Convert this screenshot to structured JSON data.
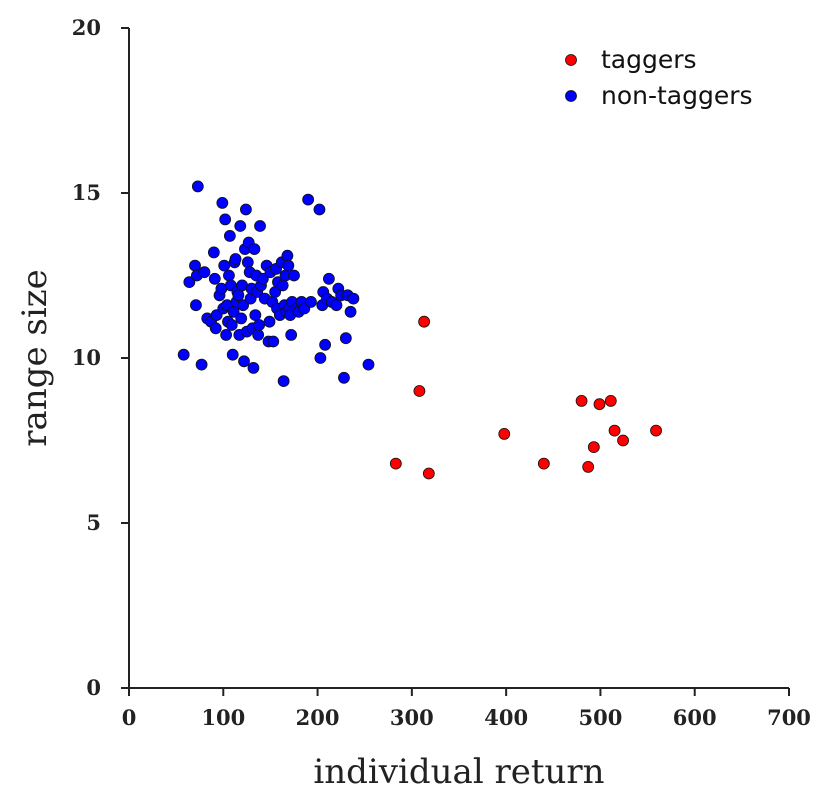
{
  "chart_data": {
    "type": "scatter",
    "xlabel": "individual return",
    "ylabel": "range size",
    "xlim": [
      0,
      700
    ],
    "ylim": [
      0,
      20
    ],
    "x_ticks": [
      0,
      100,
      200,
      300,
      400,
      500,
      600,
      700
    ],
    "y_ticks": [
      0,
      5,
      10,
      15,
      20
    ],
    "grid": false,
    "legend_position": "top-right",
    "series": [
      {
        "name": "taggers",
        "color": "#ff0000",
        "points": [
          [
            283,
            6.8
          ],
          [
            308,
            9.0
          ],
          [
            313,
            11.1
          ],
          [
            318,
            6.5
          ],
          [
            398,
            7.7
          ],
          [
            440,
            6.8
          ],
          [
            480,
            8.7
          ],
          [
            487,
            6.7
          ],
          [
            493,
            7.3
          ],
          [
            499,
            8.6
          ],
          [
            511,
            8.7
          ],
          [
            515,
            7.8
          ],
          [
            524,
            7.5
          ],
          [
            559,
            7.8
          ]
        ]
      },
      {
        "name": "non-taggers",
        "color": "#0000ff",
        "points": [
          [
            58,
            10.1
          ],
          [
            64,
            12.3
          ],
          [
            70,
            12.8
          ],
          [
            71,
            11.6
          ],
          [
            72,
            12.5
          ],
          [
            73,
            15.2
          ],
          [
            77,
            9.8
          ],
          [
            80,
            12.6
          ],
          [
            83,
            11.2
          ],
          [
            87,
            11.1
          ],
          [
            90,
            13.2
          ],
          [
            91,
            12.4
          ],
          [
            92,
            10.9
          ],
          [
            93,
            11.3
          ],
          [
            96,
            11.9
          ],
          [
            98,
            12.1
          ],
          [
            99,
            14.7
          ],
          [
            100,
            11.5
          ],
          [
            101,
            12.8
          ],
          [
            102,
            14.2
          ],
          [
            103,
            10.7
          ],
          [
            104,
            11.6
          ],
          [
            105,
            11.1
          ],
          [
            106,
            12.5
          ],
          [
            107,
            13.7
          ],
          [
            108,
            12.2
          ],
          [
            109,
            11.0
          ],
          [
            110,
            10.1
          ],
          [
            111,
            11.4
          ],
          [
            112,
            12.9
          ],
          [
            113,
            13.0
          ],
          [
            114,
            11.7
          ],
          [
            115,
            12.0
          ],
          [
            116,
            11.9
          ],
          [
            117,
            10.7
          ],
          [
            118,
            14.0
          ],
          [
            119,
            11.2
          ],
          [
            120,
            12.2
          ],
          [
            121,
            11.6
          ],
          [
            122,
            9.9
          ],
          [
            123,
            13.3
          ],
          [
            124,
            14.5
          ],
          [
            125,
            10.8
          ],
          [
            126,
            12.9
          ],
          [
            127,
            13.5
          ],
          [
            128,
            12.6
          ],
          [
            129,
            11.8
          ],
          [
            130,
            12.1
          ],
          [
            131,
            10.9
          ],
          [
            132,
            9.7
          ],
          [
            133,
            13.3
          ],
          [
            134,
            11.3
          ],
          [
            135,
            12.5
          ],
          [
            136,
            12.0
          ],
          [
            137,
            10.7
          ],
          [
            138,
            11.0
          ],
          [
            139,
            14.0
          ],
          [
            140,
            12.2
          ],
          [
            142,
            12.4
          ],
          [
            144,
            11.8
          ],
          [
            146,
            12.8
          ],
          [
            148,
            10.5
          ],
          [
            149,
            11.1
          ],
          [
            150,
            12.6
          ],
          [
            152,
            11.7
          ],
          [
            153,
            10.5
          ],
          [
            155,
            12.0
          ],
          [
            156,
            12.7
          ],
          [
            157,
            11.5
          ],
          [
            158,
            12.3
          ],
          [
            160,
            11.3
          ],
          [
            162,
            12.9
          ],
          [
            163,
            12.2
          ],
          [
            164,
            9.3
          ],
          [
            165,
            11.6
          ],
          [
            166,
            12.5
          ],
          [
            167,
            11.4
          ],
          [
            168,
            13.1
          ],
          [
            169,
            12.8
          ],
          [
            170,
            11.5
          ],
          [
            171,
            11.3
          ],
          [
            172,
            10.7
          ],
          [
            173,
            11.7
          ],
          [
            175,
            12.5
          ],
          [
            178,
            11.5
          ],
          [
            180,
            11.4
          ],
          [
            183,
            11.7
          ],
          [
            186,
            11.5
          ],
          [
            190,
            14.8
          ],
          [
            193,
            11.7
          ],
          [
            202,
            14.5
          ],
          [
            203,
            10.0
          ],
          [
            205,
            11.6
          ],
          [
            206,
            12.0
          ],
          [
            208,
            10.4
          ],
          [
            210,
            11.8
          ],
          [
            212,
            12.4
          ],
          [
            215,
            11.7
          ],
          [
            220,
            11.6
          ],
          [
            222,
            12.1
          ],
          [
            225,
            11.9
          ],
          [
            228,
            9.4
          ],
          [
            230,
            10.6
          ],
          [
            232,
            11.9
          ],
          [
            235,
            11.4
          ],
          [
            238,
            11.8
          ],
          [
            254,
            9.8
          ]
        ]
      }
    ]
  }
}
